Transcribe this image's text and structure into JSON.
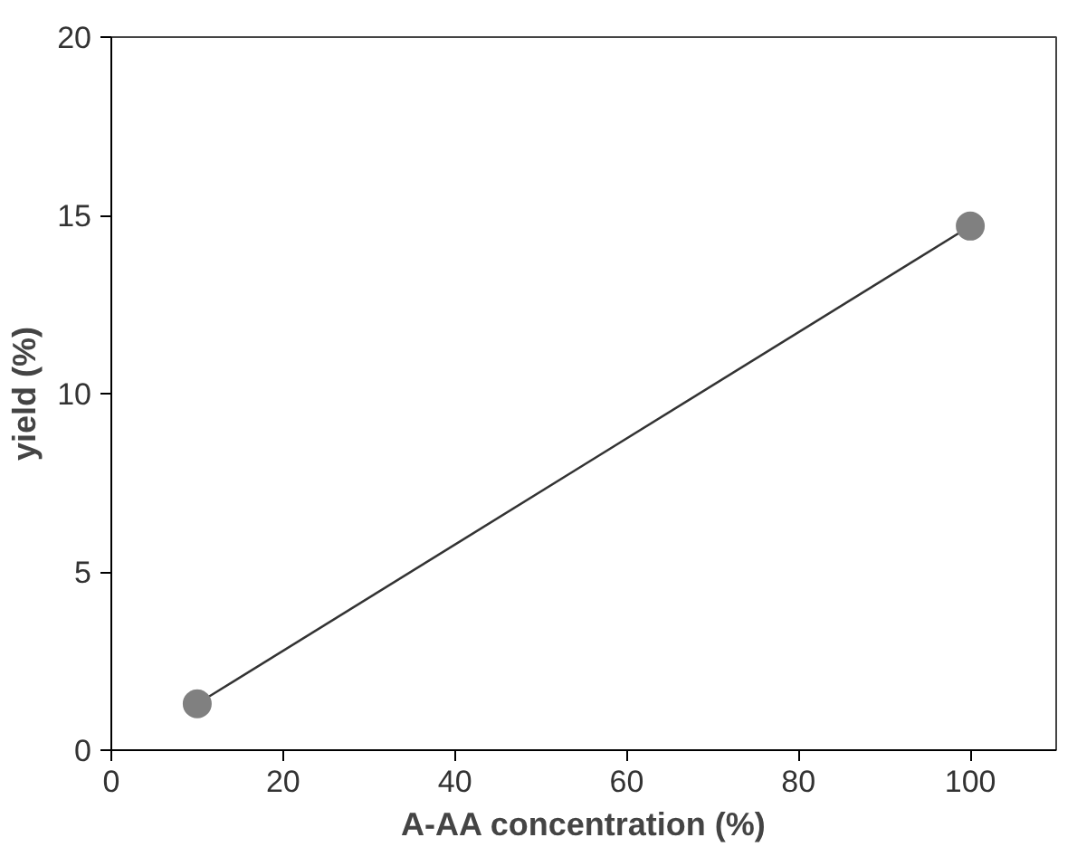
{
  "chart_data": {
    "type": "line",
    "xlabel": "A-AA concentration (%)",
    "ylabel": "yield (%)",
    "x": [
      10,
      100
    ],
    "series": [
      {
        "color": "#808080",
        "values": [
          1.3,
          14.7
        ]
      }
    ],
    "xlim": [
      0,
      110
    ],
    "xticks": [
      0,
      20,
      40,
      60,
      80,
      100
    ],
    "ylim": [
      0,
      20
    ],
    "yticks": [
      0,
      5,
      10,
      15,
      20
    ],
    "grid": false,
    "marker": "circle",
    "line_style": "solid"
  }
}
